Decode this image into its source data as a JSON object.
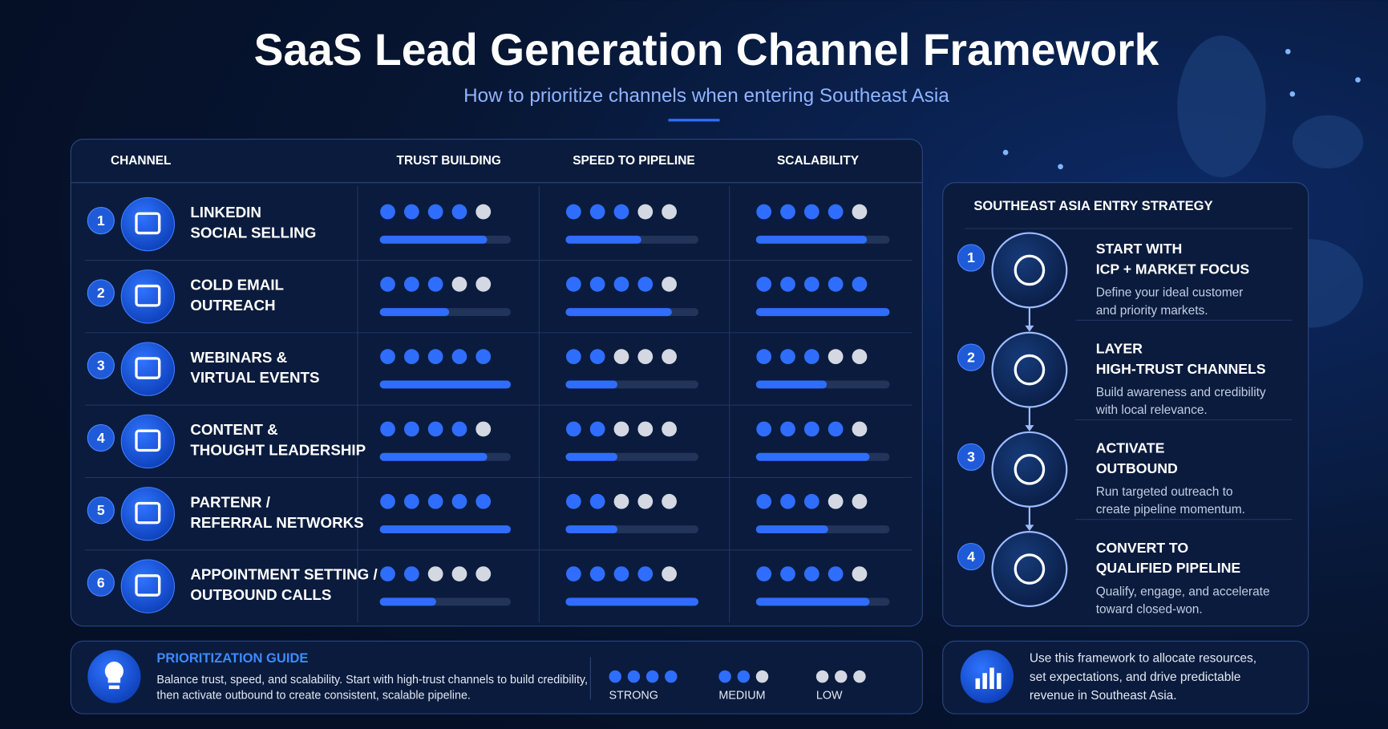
{
  "header": {
    "title": "SaaS Lead Generation Channel Framework",
    "subtitle": "How to prioritize channels when entering Southeast Asia"
  },
  "table": {
    "columns": [
      "CHANNEL",
      "TRUST BUILDING",
      "SPEED TO PIPELINE",
      "SCALABILITY"
    ],
    "rows": [
      {
        "number": 1,
        "name": [
          "LINKEDIN",
          "SOCIAL SELLING"
        ],
        "dots": [
          4,
          3,
          4
        ],
        "bars": [
          82,
          57,
          83
        ]
      },
      {
        "number": 2,
        "name": [
          "COLD EMAIL",
          "OUTREACH"
        ],
        "dots": [
          3,
          4,
          5
        ],
        "bars": [
          53,
          80,
          100
        ]
      },
      {
        "number": 3,
        "name": [
          "WEBINARS &",
          "VIRTUAL EVENTS"
        ],
        "dots": [
          5,
          2,
          3
        ],
        "bars": [
          100,
          39,
          53
        ]
      },
      {
        "number": 4,
        "name": [
          "CONTENT &",
          "THOUGHT LEADERSHIP"
        ],
        "dots": [
          4,
          2,
          4
        ],
        "bars": [
          82,
          39,
          85
        ]
      },
      {
        "number": 5,
        "name": [
          "PARTENR /",
          "REFERRAL NETWORKS"
        ],
        "dots": [
          5,
          2,
          3
        ],
        "bars": [
          100,
          39,
          54
        ]
      },
      {
        "number": 6,
        "name": [
          "APPOINTMENT SETTING /",
          "OUTBOUND CALLS"
        ],
        "dots": [
          2,
          4,
          4
        ],
        "bars": [
          43,
          100,
          85
        ]
      }
    ]
  },
  "strategy": {
    "title": "SOUTHEAST ASIA ENTRY STRATEGY",
    "steps": [
      {
        "number": 1,
        "title": [
          "START WITH",
          "ICP + MARKET FOCUS"
        ],
        "description": [
          "Define your ideal customer",
          "and priority markets."
        ]
      },
      {
        "number": 2,
        "title": [
          "LAYER",
          "HIGH-TRUST CHANNELS"
        ],
        "description": [
          "Build awareness and credibility",
          "with local relevance."
        ]
      },
      {
        "number": 3,
        "title": [
          "ACTIVATE",
          "OUTBOUND"
        ],
        "description": [
          "Run targeted outreach to",
          "create pipeline momentum."
        ]
      },
      {
        "number": 4,
        "title": [
          "CONVERT TO",
          "QUALIFIED PIPELINE"
        ],
        "description": [
          "Qualify, engage, and accelerate",
          "toward closed-won."
        ]
      }
    ]
  },
  "guide": {
    "title": "PRIORITIZATION GUIDE",
    "text": [
      "Balance trust, speed, and scalability. Start with high-trust channels to build credibility,",
      "then activate outbound to create consistent, scalable pipeline."
    ],
    "legend": [
      {
        "label": "STRONG",
        "filled": 4,
        "slots": 4
      },
      {
        "label": "MEDIUM",
        "filled": 2,
        "slots": 3
      },
      {
        "label": "LOW",
        "filled": 0,
        "slots": 3
      }
    ]
  },
  "note": {
    "text": [
      "Use this framework to allocate resources,",
      "set expectations, and drive predictable",
      "revenue in Southeast Asia."
    ]
  }
}
